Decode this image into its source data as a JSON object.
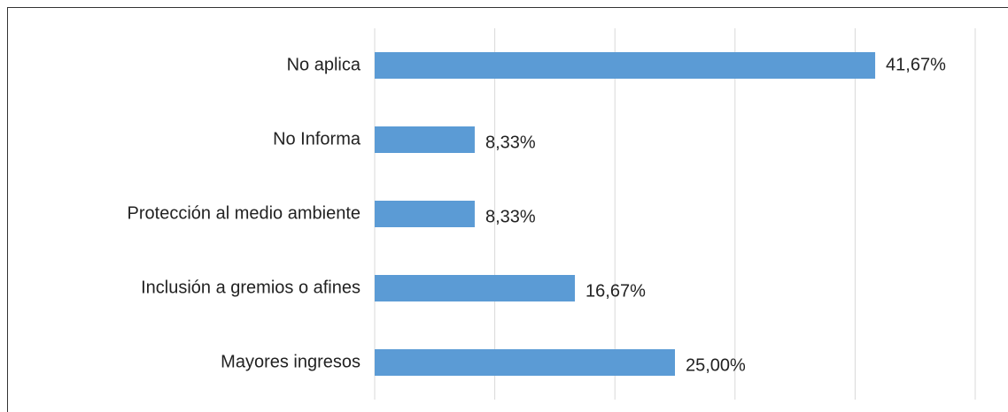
{
  "chart_data": {
    "type": "bar",
    "orientation": "horizontal",
    "categories": [
      "No aplica",
      "No Informa",
      "Protección al medio ambiente",
      "Inclusión a gremios o afines",
      "Mayores ingresos"
    ],
    "values": [
      41.67,
      8.33,
      8.33,
      16.67,
      25.0
    ],
    "value_labels": [
      "41,67%",
      "8,33%",
      "8,33%",
      "16,67%",
      "25,00%"
    ],
    "color": "#5b9bd5",
    "xlim": [
      0,
      50
    ],
    "xticks": [
      0,
      10,
      20,
      30,
      40,
      50
    ],
    "grid": true
  }
}
